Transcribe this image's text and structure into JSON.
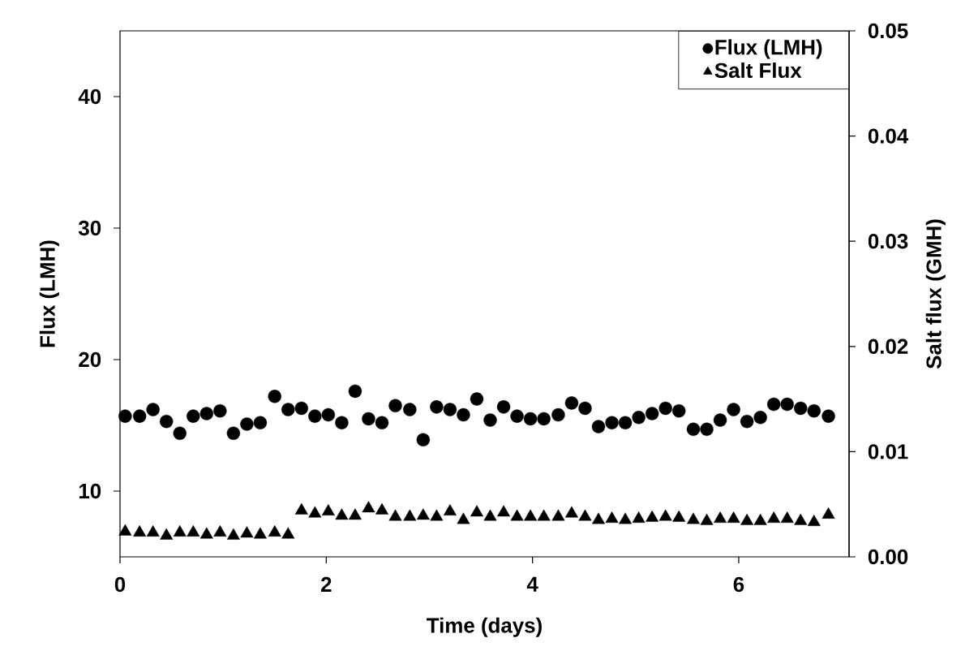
{
  "chart_data": {
    "type": "scatter",
    "xlabel": "Time (days)",
    "ylabel": "Flux (LMH)",
    "y2label": "Salt flux (GMH)",
    "x": [
      0.05,
      0.19,
      0.32,
      0.45,
      0.58,
      0.71,
      0.84,
      0.97,
      1.1,
      1.23,
      1.36,
      1.5,
      1.63,
      1.76,
      1.89,
      2.02,
      2.15,
      2.28,
      2.41,
      2.54,
      2.67,
      2.81,
      2.94,
      3.07,
      3.2,
      3.33,
      3.46,
      3.59,
      3.72,
      3.85,
      3.98,
      4.11,
      4.25,
      4.38,
      4.51,
      4.64,
      4.77,
      4.9,
      5.03,
      5.16,
      5.29,
      5.42,
      5.56,
      5.69,
      5.82,
      5.95,
      6.08,
      6.21,
      6.34,
      6.47,
      6.6,
      6.73,
      6.87
    ],
    "series": [
      {
        "name": "Flux (LMH)",
        "color": "#000000",
        "marker": "circle",
        "values": [
          15.7,
          15.7,
          16.2,
          15.3,
          14.4,
          15.7,
          15.9,
          16.1,
          14.4,
          15.1,
          15.2,
          17.2,
          16.2,
          16.3,
          15.7,
          15.8,
          15.2,
          17.6,
          15.5,
          15.2,
          16.5,
          16.2,
          13.9,
          16.4,
          16.2,
          15.8,
          17.0,
          15.4,
          16.4,
          15.7,
          15.5,
          15.5,
          15.8,
          16.7,
          16.3,
          14.9,
          15.2,
          15.2,
          15.6,
          15.9,
          16.3,
          16.1,
          14.7,
          14.7,
          15.4,
          16.2,
          15.3,
          15.6,
          16.6,
          16.6,
          16.3,
          16.1,
          15.7
        ]
      },
      {
        "name": "Salt Flux",
        "color": "#000000",
        "marker": "triangle",
        "axis": "y2",
        "values": [
          0.0024,
          0.0023,
          0.0023,
          0.002,
          0.0023,
          0.0023,
          0.0021,
          0.0023,
          0.002,
          0.0022,
          0.0021,
          0.0023,
          0.0021,
          0.0044,
          0.0041,
          0.0043,
          0.0039,
          0.0039,
          0.0046,
          0.0044,
          0.0038,
          0.0038,
          0.0039,
          0.0038,
          0.0043,
          0.0035,
          0.0042,
          0.0038,
          0.0042,
          0.0038,
          0.0038,
          0.0038,
          0.0038,
          0.0041,
          0.0038,
          0.0035,
          0.0036,
          0.0035,
          0.0036,
          0.0037,
          0.0038,
          0.0037,
          0.0035,
          0.0034,
          0.0036,
          0.0036,
          0.0034,
          0.0034,
          0.0036,
          0.0036,
          0.0034,
          0.0033,
          0.004
        ]
      }
    ],
    "xlim": [
      0,
      7.07
    ],
    "ylim": [
      5,
      45
    ],
    "y2lim": [
      0,
      0.05
    ],
    "xticks": [
      0,
      2,
      4,
      6
    ],
    "yticks": [
      10,
      20,
      30,
      40
    ],
    "y2ticks": [
      {
        "value": 0,
        "label": "0.00"
      },
      {
        "value": 0.01,
        "label": "0.01"
      },
      {
        "value": 0.02,
        "label": "0.02"
      },
      {
        "value": 0.03,
        "label": "0.03"
      },
      {
        "value": 0.04,
        "label": "0.04"
      },
      {
        "value": 0.05,
        "label": "0.05"
      }
    ],
    "legend": "top right"
  }
}
